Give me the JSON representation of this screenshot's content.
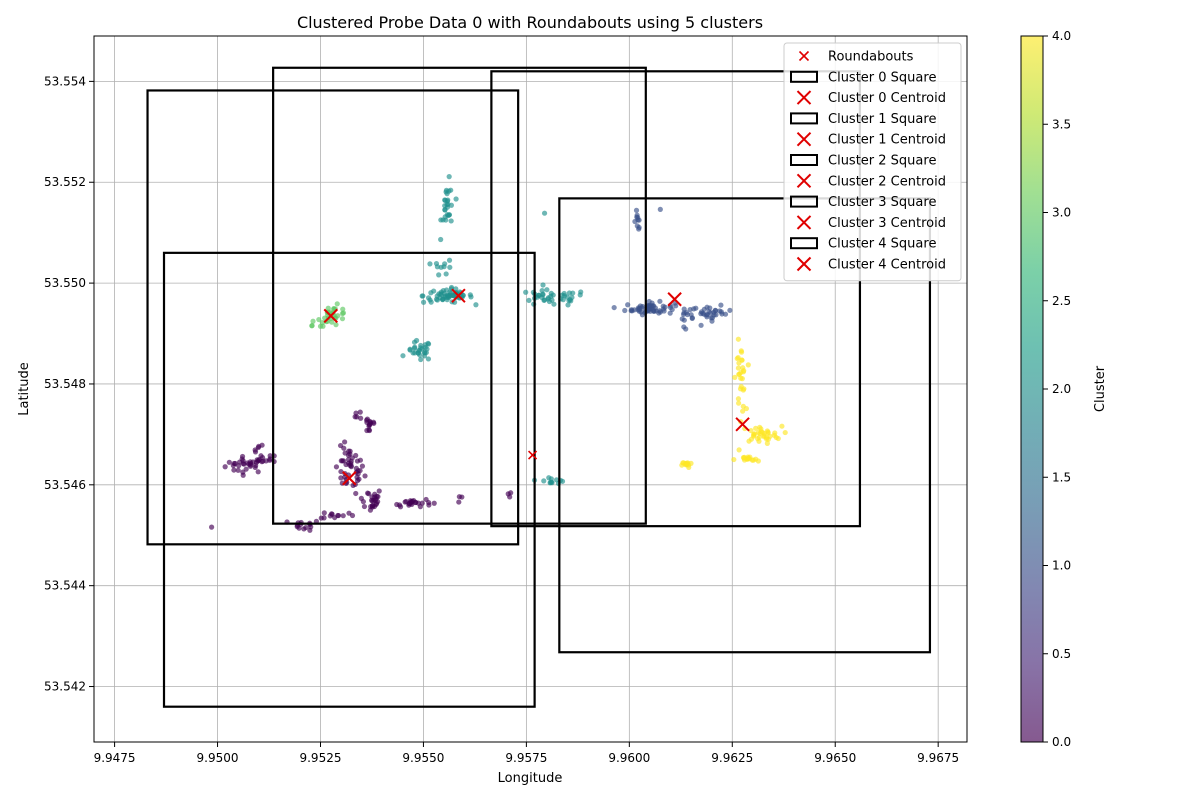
{
  "chart_data": {
    "type": "scatter",
    "title": "Clustered Probe Data 0 with Roundabouts using 5 clusters",
    "xlabel": "Longitude",
    "ylabel": "Latitude",
    "xlim": [
      9.947,
      9.9682
    ],
    "ylim": [
      53.5409,
      53.5549
    ],
    "x_ticks": [
      9.9475,
      9.95,
      9.9525,
      9.955,
      9.9575,
      9.96,
      9.9625,
      9.965,
      9.9675
    ],
    "x_tick_labels": [
      "9.9475",
      "9.9500",
      "9.9525",
      "9.9550",
      "9.9575",
      "9.9600",
      "9.9625",
      "9.9650",
      "9.9675"
    ],
    "y_ticks": [
      53.542,
      53.544,
      53.546,
      53.548,
      53.55,
      53.552,
      53.554
    ],
    "y_tick_labels": [
      "53.542",
      "53.544",
      "53.546",
      "53.548",
      "53.550",
      "53.552",
      "53.554"
    ],
    "grid": true,
    "legend_position": "top-right",
    "legend": [
      {
        "label": "Roundabouts",
        "kind": "roundabout"
      },
      {
        "label": "Cluster 0 Square",
        "kind": "square"
      },
      {
        "label": "Cluster 0 Centroid",
        "kind": "centroid"
      },
      {
        "label": "Cluster 1 Square",
        "kind": "square"
      },
      {
        "label": "Cluster 1 Centroid",
        "kind": "centroid"
      },
      {
        "label": "Cluster 2 Square",
        "kind": "square"
      },
      {
        "label": "Cluster 2 Centroid",
        "kind": "centroid"
      },
      {
        "label": "Cluster 3 Square",
        "kind": "square"
      },
      {
        "label": "Cluster 3 Centroid",
        "kind": "centroid"
      },
      {
        "label": "Cluster 4 Square",
        "kind": "square"
      },
      {
        "label": "Cluster 4 Centroid",
        "kind": "centroid"
      }
    ],
    "colorbar": {
      "label": "Cluster",
      "min": 0.0,
      "max": 4.0,
      "ticks": [
        0.0,
        0.5,
        1.0,
        1.5,
        2.0,
        2.5,
        3.0,
        3.5,
        4.0
      ],
      "tick_labels": [
        "0.0",
        "0.5",
        "1.0",
        "1.5",
        "2.0",
        "2.5",
        "3.0",
        "3.5",
        "4.0"
      ],
      "colormap": "viridis",
      "stops": [
        "#440154",
        "#482878",
        "#3e4989",
        "#31688e",
        "#26828e",
        "#1f9e89",
        "#35b779",
        "#6ece58",
        "#b5de2b",
        "#fde725"
      ]
    },
    "cluster_colors": [
      "#440154",
      "#3b528b",
      "#21908d",
      "#5dc863",
      "#fde725"
    ],
    "centroids": [
      {
        "cluster": 0,
        "x": 9.9532,
        "y": 53.54613
      },
      {
        "cluster": 1,
        "x": 9.9611,
        "y": 53.54968
      },
      {
        "cluster": 2,
        "x": 9.95585,
        "y": 53.54975
      },
      {
        "cluster": 3,
        "x": 9.95275,
        "y": 53.54935
      },
      {
        "cluster": 4,
        "x": 9.96275,
        "y": 53.5472
      }
    ],
    "roundabouts": [
      {
        "x": 9.95765,
        "y": 53.54659
      }
    ],
    "squares": [
      {
        "cluster": 0,
        "x0": 9.9483,
        "x1": 9.9573,
        "y0": 53.54482,
        "y1": 53.55382
      },
      {
        "cluster": 1,
        "x0": 9.9583,
        "x1": 9.9673,
        "y0": 53.54268,
        "y1": 53.55168
      },
      {
        "cluster": 2,
        "x0": 9.95135,
        "x1": 9.9604,
        "y0": 53.54523,
        "y1": 53.55427
      },
      {
        "cluster": 3,
        "x0": 9.9487,
        "x1": 9.9577,
        "y0": 53.5416,
        "y1": 53.5506
      },
      {
        "cluster": 4,
        "x0": 9.95665,
        "x1": 9.9656,
        "y0": 53.54518,
        "y1": 53.5542
      }
    ],
    "point_groups": [
      {
        "cluster": 0,
        "cx": 9.9507,
        "cy": 53.5464,
        "sx": 0.00025,
        "sy": 8e-05,
        "n": 30
      },
      {
        "cluster": 0,
        "cx": 9.9512,
        "cy": 53.5465,
        "sx": 0.00012,
        "sy": 5e-05,
        "n": 12
      },
      {
        "cluster": 0,
        "cx": 9.951,
        "cy": 53.5467,
        "sx": 5e-05,
        "sy": 6e-05,
        "n": 5
      },
      {
        "cluster": 0,
        "cx": 9.9521,
        "cy": 53.5452,
        "sx": 0.0002,
        "sy": 5e-05,
        "n": 14
      },
      {
        "cluster": 0,
        "cx": 9.9532,
        "cy": 53.5463,
        "sx": 0.00018,
        "sy": 0.00022,
        "n": 45
      },
      {
        "cluster": 0,
        "cx": 9.9529,
        "cy": 53.5454,
        "sx": 0.0002,
        "sy": 4e-05,
        "n": 12
      },
      {
        "cluster": 0,
        "cx": 9.9537,
        "cy": 53.5457,
        "sx": 0.00015,
        "sy": 0.00012,
        "n": 25
      },
      {
        "cluster": 0,
        "cx": 9.9537,
        "cy": 53.5472,
        "sx": 8e-05,
        "sy": 0.0001,
        "n": 14
      },
      {
        "cluster": 0,
        "cx": 9.95345,
        "cy": 53.5474,
        "sx": 5e-05,
        "sy": 6e-05,
        "n": 5
      },
      {
        "cluster": 0,
        "cx": 9.9547,
        "cy": 53.54565,
        "sx": 0.00025,
        "sy": 4e-05,
        "n": 25
      },
      {
        "cluster": 0,
        "cx": 9.9559,
        "cy": 53.54575,
        "sx": 4e-05,
        "sy": 4e-05,
        "n": 3
      },
      {
        "cluster": 0,
        "cx": 9.9571,
        "cy": 53.5458,
        "sx": 3e-05,
        "sy": 8e-05,
        "n": 3
      },
      {
        "cluster": 0,
        "cx": 9.94985,
        "cy": 53.54515,
        "sx": 1e-05,
        "sy": 1e-05,
        "n": 1
      },
      {
        "cluster": 1,
        "cx": 9.9605,
        "cy": 53.5495,
        "sx": 0.0003,
        "sy": 6e-05,
        "n": 60
      },
      {
        "cluster": 1,
        "cx": 9.962,
        "cy": 53.5494,
        "sx": 0.00025,
        "sy": 7e-05,
        "n": 30
      },
      {
        "cluster": 1,
        "cx": 9.9614,
        "cy": 53.5493,
        "sx": 8e-05,
        "sy": 8e-05,
        "n": 10
      },
      {
        "cluster": 1,
        "cx": 9.9602,
        "cy": 53.55125,
        "sx": 4e-05,
        "sy": 0.0001,
        "n": 10
      },
      {
        "cluster": 1,
        "cx": 9.96075,
        "cy": 53.55145,
        "sx": 1e-05,
        "sy": 1e-05,
        "n": 1
      },
      {
        "cluster": 2,
        "cx": 9.9556,
        "cy": 53.54975,
        "sx": 0.0003,
        "sy": 7e-05,
        "n": 60
      },
      {
        "cluster": 2,
        "cx": 9.9581,
        "cy": 53.5497,
        "sx": 0.00045,
        "sy": 8e-05,
        "n": 40
      },
      {
        "cluster": 2,
        "cx": 9.9549,
        "cy": 53.54865,
        "sx": 0.00015,
        "sy": 0.0001,
        "n": 28
      },
      {
        "cluster": 2,
        "cx": 9.9556,
        "cy": 53.5515,
        "sx": 8e-05,
        "sy": 0.00025,
        "n": 28
      },
      {
        "cluster": 2,
        "cx": 9.9555,
        "cy": 53.5503,
        "sx": 0.00012,
        "sy": 8e-05,
        "n": 10
      },
      {
        "cluster": 2,
        "cx": 9.95795,
        "cy": 53.5514,
        "sx": 1e-05,
        "sy": 1e-05,
        "n": 1
      },
      {
        "cluster": 2,
        "cx": 9.9581,
        "cy": 53.5461,
        "sx": 0.00018,
        "sy": 4e-05,
        "n": 12
      },
      {
        "cluster": 3,
        "cx": 9.9528,
        "cy": 53.54935,
        "sx": 0.00018,
        "sy": 0.0001,
        "n": 30
      },
      {
        "cluster": 3,
        "cx": 9.9523,
        "cy": 53.5492,
        "sx": 4e-05,
        "sy": 4e-05,
        "n": 3
      },
      {
        "cluster": 4,
        "cx": 9.9627,
        "cy": 53.5481,
        "sx": 6e-05,
        "sy": 0.00035,
        "n": 30
      },
      {
        "cluster": 4,
        "cx": 9.9632,
        "cy": 53.547,
        "sx": 0.00025,
        "sy": 8e-05,
        "n": 35
      },
      {
        "cluster": 4,
        "cx": 9.96285,
        "cy": 53.5465,
        "sx": 0.00015,
        "sy": 3e-05,
        "n": 15
      },
      {
        "cluster": 4,
        "cx": 9.9614,
        "cy": 53.5464,
        "sx": 6e-05,
        "sy": 3e-05,
        "n": 12
      }
    ]
  }
}
